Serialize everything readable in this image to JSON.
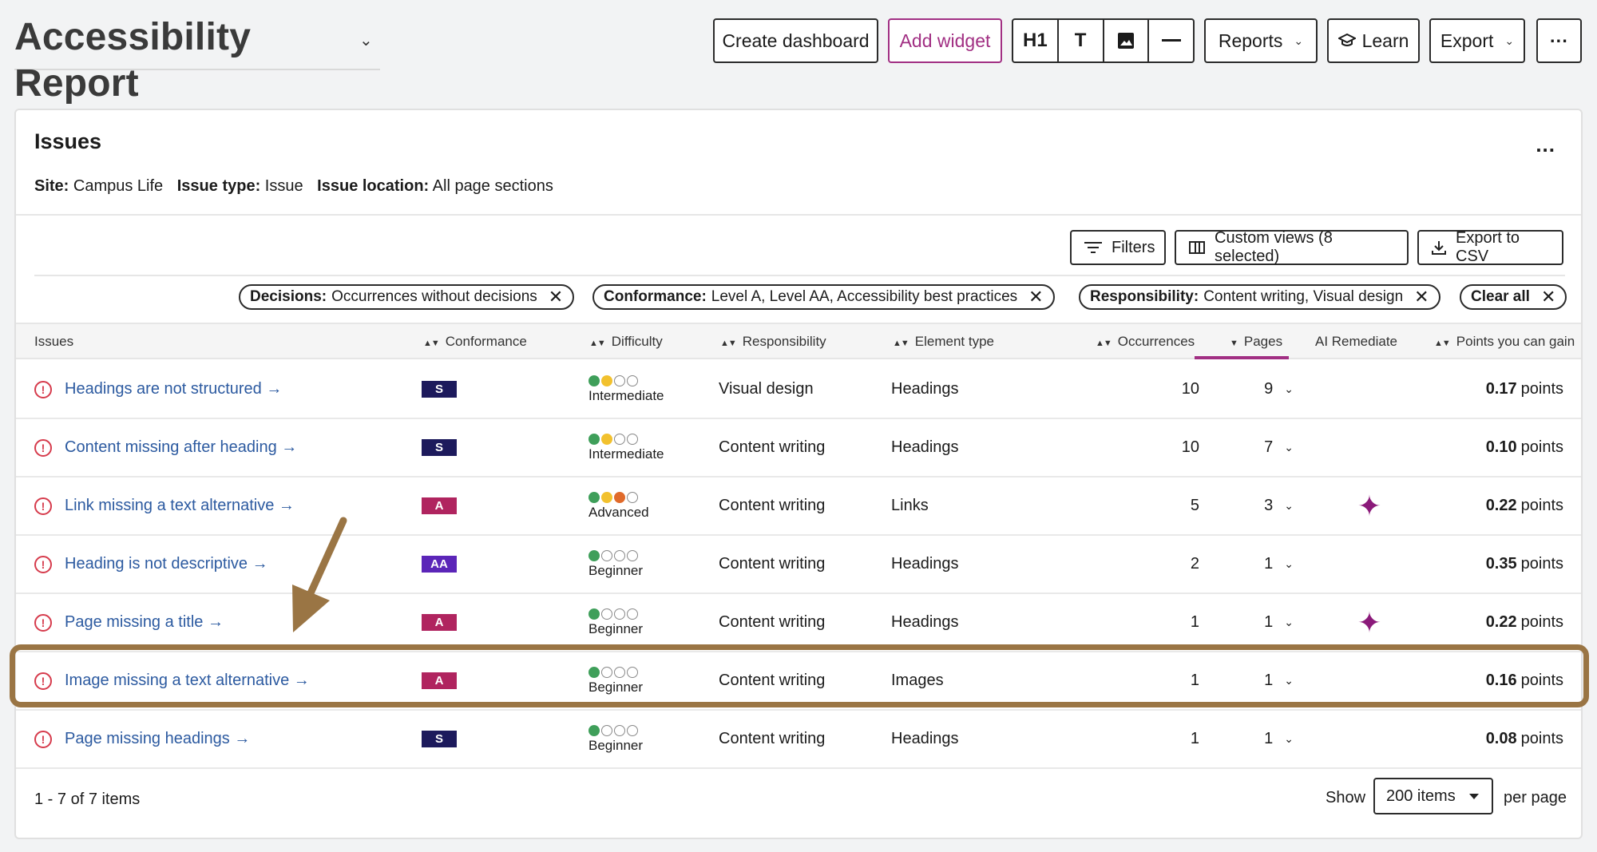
{
  "header": {
    "title": "Accessibility Report",
    "create_dashboard": "Create dashboard",
    "add_widget": "Add widget",
    "format_h1": "H1",
    "format_t": "T",
    "reports": "Reports",
    "learn": "Learn",
    "export": "Export",
    "more": "···"
  },
  "card": {
    "title": "Issues",
    "more": "...",
    "meta": {
      "site_label": "Site:",
      "site_value": "Campus Life",
      "type_label": "Issue type:",
      "type_value": "Issue",
      "location_label": "Issue location:",
      "location_value": "All page sections"
    },
    "actions": {
      "filters": "Filters",
      "custom_views": "Custom views (8 selected)",
      "export_csv": "Export to CSV"
    },
    "chips": [
      {
        "label": "Decisions:",
        "value": "Occurrences without decisions"
      },
      {
        "label": "Conformance:",
        "value": "Level A, Level AA, Accessibility best practices"
      },
      {
        "label": "Responsibility:",
        "value": "Content writing, Visual design"
      }
    ],
    "clear_all": "Clear all"
  },
  "table": {
    "columns": [
      "Issues",
      "Conformance",
      "Difficulty",
      "Responsibility",
      "Element type",
      "Occurrences",
      "Pages",
      "AI Remediate",
      "Points you can gain"
    ],
    "rows": [
      {
        "issue": "Headings are not structured →",
        "conformance": "S",
        "difficulty": "Intermediate",
        "responsibility": "Visual design",
        "element": "Headings",
        "occurrences": "10",
        "pages": "9",
        "points_value": "0.17",
        "points_unit": "points"
      },
      {
        "issue": "Content missing after heading →",
        "conformance": "S",
        "difficulty": "Intermediate",
        "responsibility": "Content writing",
        "element": "Headings",
        "occurrences": "10",
        "pages": "7",
        "points_value": "0.10",
        "points_unit": "points"
      },
      {
        "issue": "Link missing a text alternative →",
        "conformance": "A",
        "difficulty": "Advanced",
        "responsibility": "Content writing",
        "element": "Links",
        "occurrences": "5",
        "pages": "3",
        "points_value": "0.22",
        "points_unit": "points"
      },
      {
        "issue": "Heading is not descriptive →",
        "conformance": "AA",
        "difficulty": "Beginner",
        "responsibility": "Content writing",
        "element": "Headings",
        "occurrences": "2",
        "pages": "1",
        "points_value": "0.35",
        "points_unit": "points"
      },
      {
        "issue": "Page missing a title →",
        "conformance": "A",
        "difficulty": "Beginner",
        "responsibility": "Content writing",
        "element": "Headings",
        "occurrences": "1",
        "pages": "1",
        "points_value": "0.22",
        "points_unit": "points"
      },
      {
        "issue": "Image missing a text alternative →",
        "conformance": "A",
        "difficulty": "Beginner",
        "responsibility": "Content writing",
        "element": "Images",
        "occurrences": "1",
        "pages": "1",
        "points_value": "0.16",
        "points_unit": "points"
      },
      {
        "issue": "Page missing headings →",
        "conformance": "S",
        "difficulty": "Beginner",
        "responsibility": "Content writing",
        "element": "Headings",
        "occurrences": "1",
        "pages": "1",
        "points_value": "0.08",
        "points_unit": "points"
      }
    ],
    "ai_remediate_rows": [
      2,
      4
    ],
    "highlighted_row": 5
  },
  "footer": {
    "count": "1 - 7 of 7 items",
    "show": "Show",
    "per_page_value": "200 items",
    "per_page": "per page"
  },
  "colors": {
    "accent": "#a12f83",
    "badge_S": "#1d1a5c",
    "badge_A": "#b0245f",
    "badge_AA": "#5b25b8",
    "dot_green": "#3f9f5a",
    "dot_yellow": "#f2c12e",
    "dot_orange": "#e06a2a",
    "link": "#2c5aa0",
    "annotation": "#9a7544",
    "ai_sparkle": "#8b1a7a"
  }
}
